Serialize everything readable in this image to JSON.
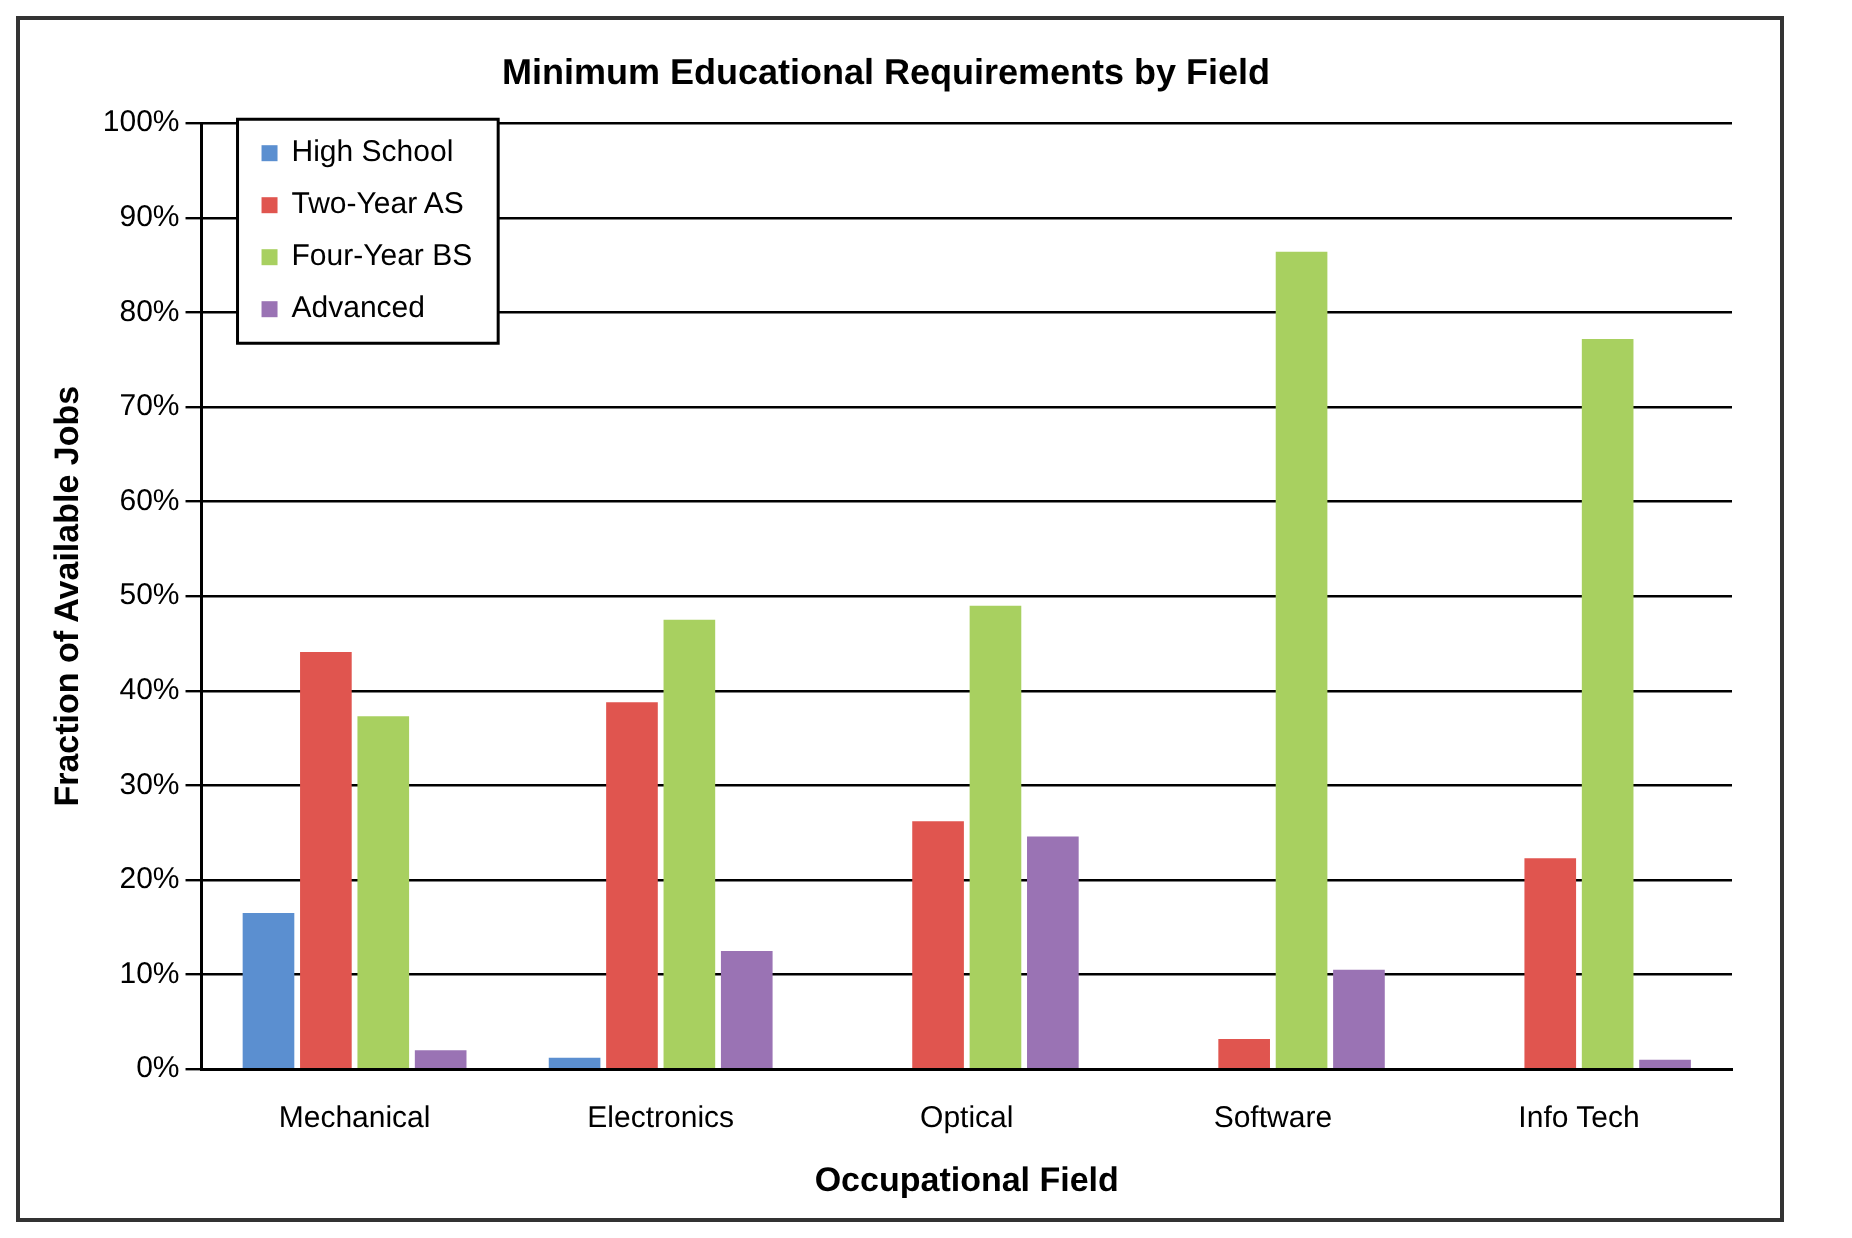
{
  "chart_data": {
    "type": "bar",
    "title": "Minimum Educational Requirements by Field",
    "xlabel": "Occupational Field",
    "ylabel": "Fraction of Available Jobs",
    "categories": [
      "Mechanical",
      "Electronics",
      "Optical",
      "Software",
      "Info Tech"
    ],
    "series": [
      {
        "name": "High School",
        "color": "#5b8fd0",
        "values": [
          16.5,
          1.2,
          0,
          0,
          0
        ]
      },
      {
        "name": "Two-Year AS",
        "color": "#e0554f",
        "values": [
          44.1,
          38.8,
          26.2,
          3.2,
          22.3
        ]
      },
      {
        "name": "Four-Year BS",
        "color": "#a8d060",
        "values": [
          37.3,
          47.5,
          49,
          86.4,
          77.2
        ]
      },
      {
        "name": "Advanced",
        "color": "#9a73b4",
        "values": [
          2,
          12.5,
          24.6,
          10.5,
          1
        ]
      }
    ],
    "ylim": [
      0,
      100
    ],
    "yticks": [
      {
        "value": 0,
        "label": "0%"
      },
      {
        "value": 10,
        "label": "10%"
      },
      {
        "value": 20,
        "label": "20%"
      },
      {
        "value": 30,
        "label": "30%"
      },
      {
        "value": 40,
        "label": "40%"
      },
      {
        "value": 50,
        "label": "50%"
      },
      {
        "value": 60,
        "label": "60%"
      },
      {
        "value": 70,
        "label": "70%"
      },
      {
        "value": 80,
        "label": "80%"
      },
      {
        "value": 90,
        "label": "90%"
      },
      {
        "value": 100,
        "label": "100%"
      }
    ],
    "grid": "y",
    "legend": "top left"
  }
}
